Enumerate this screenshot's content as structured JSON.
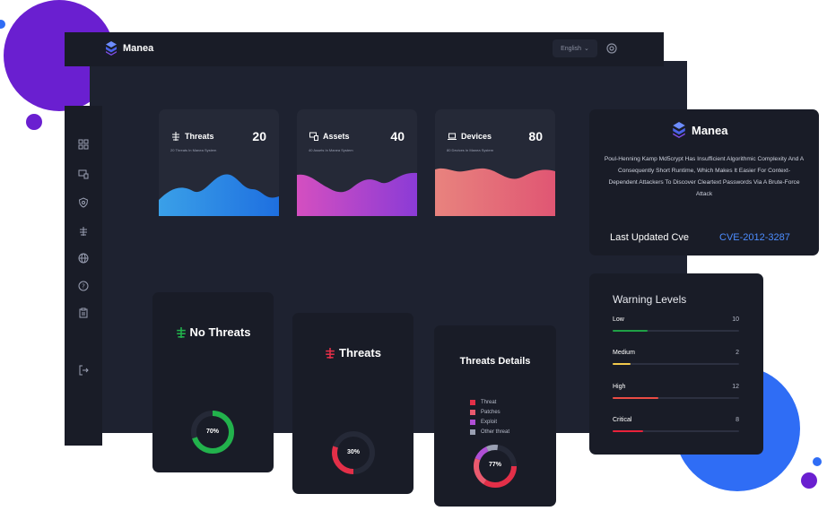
{
  "app": {
    "name": "Manea"
  },
  "topbar": {
    "language": "English",
    "chevron": "⌄"
  },
  "sidebar": {
    "icons": [
      "dashboard-icon",
      "devices-icon",
      "shield-icon",
      "bug-icon",
      "globe-icon",
      "help-icon",
      "clipboard-icon",
      "logout-icon"
    ]
  },
  "stats": [
    {
      "id": "threats",
      "label": "Threats",
      "value": "20",
      "subtitle": "20 Threats In Manea System",
      "gradient": [
        "#3aa0e8",
        "#1e6fe0"
      ]
    },
    {
      "id": "assets",
      "label": "Assets",
      "value": "40",
      "subtitle": "40 Assets In Manea System",
      "gradient": [
        "#d44fc0",
        "#8b3bd6"
      ]
    },
    {
      "id": "devices",
      "label": "Devices",
      "value": "80",
      "subtitle": "80 Devices In Manea System",
      "gradient": [
        "#e8837e",
        "#e05673"
      ]
    }
  ],
  "info": {
    "brand": "Manea",
    "description": "Poul-Henning Kamp Md5crypt Has Insufficient Algorithmic Complexity And A Consequently Short Runtime, Which Makes It Easier For Context-Dependent Attackers To Discover Cleartext Passwords Via A Brute-Force Attack",
    "last_updated_label": "Last Updated Cve",
    "cve": "CVE-2012-3287"
  },
  "warning_levels": {
    "title": "Warning Levels",
    "items": [
      {
        "label": "Low",
        "count": "10",
        "fraction": 0.28,
        "color": "#1fa045"
      },
      {
        "label": "Medium",
        "count": "2",
        "fraction": 0.14,
        "color": "#f2c94c"
      },
      {
        "label": "High",
        "count": "12",
        "fraction": 0.36,
        "color": "#eb4c44"
      },
      {
        "label": "Critical",
        "count": "8",
        "fraction": 0.24,
        "color": "#e8223a"
      }
    ]
  },
  "panels": {
    "no_threats": {
      "title": "No Threats",
      "percent_label": "70%",
      "percent": 0.7,
      "color": "#22b24c"
    },
    "threats": {
      "title": "Threats",
      "percent_label": "30%",
      "percent": 0.3,
      "color": "#e32f48"
    },
    "threats_details": {
      "title": "Threats Details",
      "percent_label": "77%",
      "legend": [
        {
          "label": "Threat",
          "color": "#e32f48"
        },
        {
          "label": "Patches",
          "color": "#ea5a6e"
        },
        {
          "label": "Exploit",
          "color": "#b04fd6"
        },
        {
          "label": "Other threat",
          "color": "#9aa0b3"
        }
      ]
    }
  }
}
